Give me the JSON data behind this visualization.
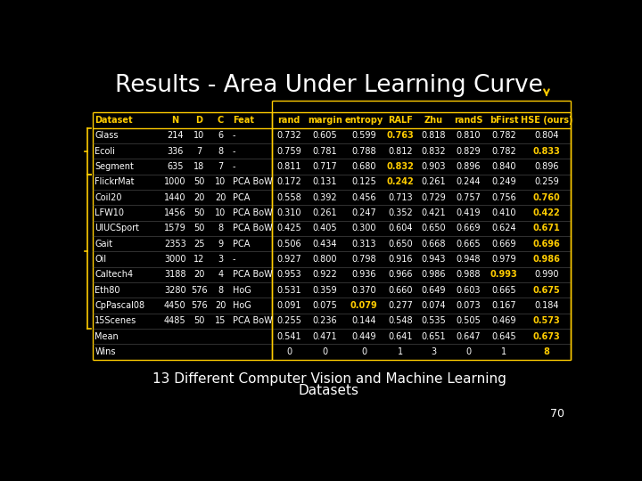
{
  "title": "Results - Area Under Learning Curve",
  "subtitle": "13 Different Computer Vision and Machine Learning\nDatasets",
  "page_number": "70",
  "background_color": "#000000",
  "title_color": "#ffffff",
  "subtitle_color": "#ffffff",
  "table": {
    "columns": [
      "Dataset",
      "N",
      "D",
      "C",
      "Feat",
      "rand",
      "margin",
      "entropy",
      "RALF",
      "Zhu",
      "randS",
      "bFirst",
      "HSE (ours)"
    ],
    "rows": [
      [
        "Glass",
        "214",
        "10",
        "6",
        "-",
        "0.732",
        "0.605",
        "0.599",
        "0.763",
        "0.818",
        "0.810",
        "0.782",
        "0.804"
      ],
      [
        "Ecoli",
        "336",
        "7",
        "8",
        "-",
        "0.759",
        "0.781",
        "0.788",
        "0.812",
        "0.832",
        "0.829",
        "0.782",
        "0.833"
      ],
      [
        "Segment",
        "635",
        "18",
        "7",
        "-",
        "0.811",
        "0.717",
        "0.680",
        "0.832",
        "0.903",
        "0.896",
        "0.840",
        "0.896"
      ],
      [
        "FlickrMat",
        "1000",
        "50",
        "10",
        "PCA BoW",
        "0.172",
        "0.131",
        "0.125",
        "0.242",
        "0.261",
        "0.244",
        "0.249",
        "0.259"
      ],
      [
        "Coil20",
        "1440",
        "20",
        "20",
        "PCA",
        "0.558",
        "0.392",
        "0.456",
        "0.713",
        "0.729",
        "0.757",
        "0.756",
        "0.760"
      ],
      [
        "LFW10",
        "1456",
        "50",
        "10",
        "PCA BoW",
        "0.310",
        "0.261",
        "0.247",
        "0.352",
        "0.421",
        "0.419",
        "0.410",
        "0.422"
      ],
      [
        "UIUCSport",
        "1579",
        "50",
        "8",
        "PCA BoW",
        "0.425",
        "0.405",
        "0.300",
        "0.604",
        "0.650",
        "0.669",
        "0.624",
        "0.671"
      ],
      [
        "Gait",
        "2353",
        "25",
        "9",
        "PCA",
        "0.506",
        "0.434",
        "0.313",
        "0.650",
        "0.668",
        "0.665",
        "0.669",
        "0.696"
      ],
      [
        "Oil",
        "3000",
        "12",
        "3",
        "-",
        "0.927",
        "0.800",
        "0.798",
        "0.916",
        "0.943",
        "0.948",
        "0.979",
        "0.986"
      ],
      [
        "Caltech4",
        "3188",
        "20",
        "4",
        "PCA BoW",
        "0.953",
        "0.922",
        "0.936",
        "0.966",
        "0.986",
        "0.988",
        "0.993",
        "0.990"
      ],
      [
        "Eth80",
        "3280",
        "576",
        "8",
        "HoG",
        "0.531",
        "0.359",
        "0.370",
        "0.660",
        "0.649",
        "0.603",
        "0.665",
        "0.675"
      ],
      [
        "CpPascal08",
        "4450",
        "576",
        "20",
        "HoG",
        "0.091",
        "0.075",
        "0.079",
        "0.277",
        "0.074",
        "0.073",
        "0.167",
        "0.184"
      ],
      [
        "15Scenes",
        "4485",
        "50",
        "15",
        "PCA BoW",
        "0.255",
        "0.236",
        "0.144",
        "0.548",
        "0.535",
        "0.505",
        "0.469",
        "0.573"
      ],
      [
        "Mean",
        "",
        "",
        "",
        "",
        "0.541",
        "0.471",
        "0.449",
        "0.641",
        "0.651",
        "0.647",
        "0.645",
        "0.673"
      ],
      [
        "Wins",
        "",
        "",
        "",
        "",
        "0",
        "0",
        "0",
        "1",
        "3",
        "0",
        "1",
        "8"
      ]
    ],
    "bold_map": {
      "1": [
        8
      ],
      "2": [
        12
      ],
      "3": [
        8
      ],
      "4": [
        8
      ],
      "5": [
        12
      ],
      "6": [
        12
      ],
      "7": [
        12
      ],
      "8": [
        12
      ],
      "9": [
        12
      ],
      "10": [
        11
      ],
      "11": [
        12
      ],
      "12": [
        7
      ],
      "13": [
        12
      ],
      "14": [
        12
      ],
      "15": [
        12
      ]
    },
    "gold_color": "#ffcc00",
    "white_color": "#ffffff",
    "col_split_after": 4
  }
}
